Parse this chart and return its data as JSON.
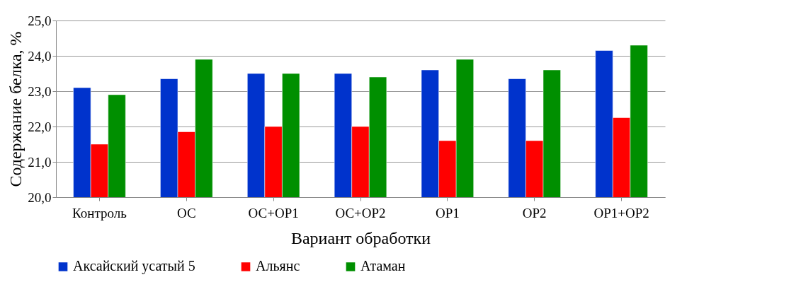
{
  "chart_data": {
    "type": "bar",
    "xlabel": "Вариант обработки",
    "ylabel": "Содержание белка, %",
    "categories": [
      "Контроль",
      "ОС",
      "ОС+ОР1",
      "ОС+ОР2",
      "ОР1",
      "ОР2",
      "ОР1+ОР2"
    ],
    "series": [
      {
        "name": "Аксайский усатый 5",
        "color": "#0033cc",
        "values": [
          23.1,
          23.35,
          23.5,
          23.5,
          23.6,
          23.35,
          24.15
        ]
      },
      {
        "name": "Альянс",
        "color": "#ff0000",
        "values": [
          21.5,
          21.85,
          22.0,
          22.0,
          21.6,
          21.6,
          22.25
        ]
      },
      {
        "name": "Атаман",
        "color": "#008f00",
        "values": [
          22.9,
          23.9,
          23.5,
          23.4,
          23.9,
          23.6,
          24.3
        ]
      }
    ],
    "ylim": [
      20,
      25
    ],
    "yticks": [
      {
        "value": 20,
        "label": "20,0"
      },
      {
        "value": 21,
        "label": "21,0"
      },
      {
        "value": 22,
        "label": "22,0"
      },
      {
        "value": 23,
        "label": "23,0"
      },
      {
        "value": 24,
        "label": "24,0"
      },
      {
        "value": 25,
        "label": "25,0"
      }
    ],
    "grid": "y",
    "legend": "bottom"
  }
}
